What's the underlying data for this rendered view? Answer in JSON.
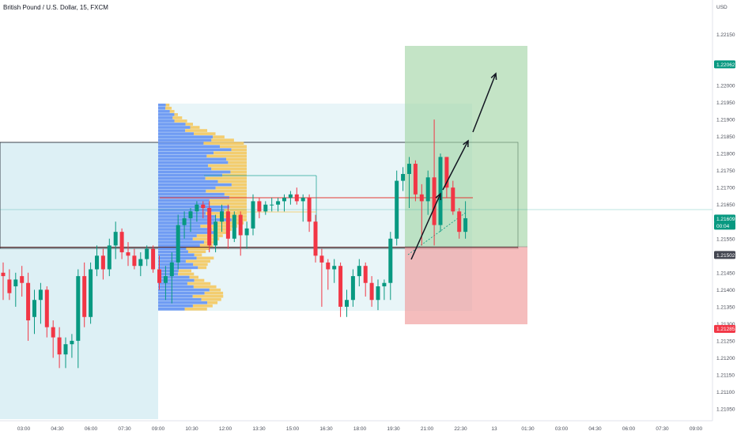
{
  "header": {
    "title": "British Pound / U.S. Dollar, 15, FXCM"
  },
  "colors": {
    "up": "#089981",
    "down": "#f23645",
    "vp_up": "#f5c557",
    "vp_down": "#5b8cf2",
    "target_zone": "#a5d6a7",
    "stop_zone": "#ef9a9a",
    "range_box": "#b3dde8"
  },
  "chart_data": {
    "type": "candlestick",
    "symbol": "GBPUSD",
    "timeframe": "15",
    "currency_label": "USD",
    "y_ticks": [
      "1.22150",
      "1.22000",
      "1.21950",
      "1.21900",
      "1.21850",
      "1.21800",
      "1.21750",
      "1.21700",
      "1.21650",
      "1.21550",
      "1.21450",
      "1.21400",
      "1.21350",
      "1.21300",
      "1.21250",
      "1.21200",
      "1.21150",
      "1.21100",
      "1.21050"
    ],
    "x_ticks": [
      "03:00",
      "04:30",
      "06:00",
      "07:30",
      "09:00",
      "10:30",
      "12:00",
      "13:30",
      "15:00",
      "16:30",
      "18:00",
      "19:30",
      "21:00",
      "22:30",
      "13",
      "01:30",
      "03:00",
      "04:30",
      "06:00",
      "07:30",
      "09:00"
    ],
    "ylim": [
      1.2102,
      1.2217
    ],
    "price_tags": [
      {
        "label": "1.22062",
        "value": 1.22062,
        "color": "#089981"
      },
      {
        "label": "1.21609",
        "value": 1.21609,
        "color": "#089981"
      },
      {
        "label": "00:04",
        "value": 1.21588,
        "color": "#089981"
      },
      {
        "label": "1.21502",
        "value": 1.21502,
        "color": "#434651"
      },
      {
        "label": "1.21285",
        "value": 1.21285,
        "color": "#f23645"
      }
    ],
    "candles": [
      {
        "o": 1.2145,
        "h": 1.2148,
        "l": 1.2137,
        "c": 1.2144
      },
      {
        "o": 1.2143,
        "h": 1.2146,
        "l": 1.2137,
        "c": 1.2139
      },
      {
        "o": 1.2141,
        "h": 1.2145,
        "l": 1.2135,
        "c": 1.2143
      },
      {
        "o": 1.2144,
        "h": 1.2147,
        "l": 1.2138,
        "c": 1.2142
      },
      {
        "o": 1.2142,
        "h": 1.2145,
        "l": 1.2125,
        "c": 1.2131
      },
      {
        "o": 1.2132,
        "h": 1.214,
        "l": 1.2127,
        "c": 1.2137
      },
      {
        "o": 1.2137,
        "h": 1.2142,
        "l": 1.213,
        "c": 1.214
      },
      {
        "o": 1.214,
        "h": 1.2141,
        "l": 1.2126,
        "c": 1.2129
      },
      {
        "o": 1.2129,
        "h": 1.2131,
        "l": 1.212,
        "c": 1.2126
      },
      {
        "o": 1.2126,
        "h": 1.2129,
        "l": 1.2117,
        "c": 1.2121
      },
      {
        "o": 1.2121,
        "h": 1.2126,
        "l": 1.2117,
        "c": 1.2124
      },
      {
        "o": 1.2124,
        "h": 1.2127,
        "l": 1.212,
        "c": 1.2125
      },
      {
        "o": 1.2125,
        "h": 1.2146,
        "l": 1.2117,
        "c": 1.2144
      },
      {
        "o": 1.2144,
        "h": 1.2148,
        "l": 1.2129,
        "c": 1.2132
      },
      {
        "o": 1.2132,
        "h": 1.2148,
        "l": 1.213,
        "c": 1.2146
      },
      {
        "o": 1.2146,
        "h": 1.2153,
        "l": 1.2144,
        "c": 1.215
      },
      {
        "o": 1.215,
        "h": 1.2152,
        "l": 1.2143,
        "c": 1.2146
      },
      {
        "o": 1.2146,
        "h": 1.2155,
        "l": 1.2144,
        "c": 1.2153
      },
      {
        "o": 1.2153,
        "h": 1.216,
        "l": 1.2149,
        "c": 1.2157
      },
      {
        "o": 1.2157,
        "h": 1.2158,
        "l": 1.2149,
        "c": 1.2151
      },
      {
        "o": 1.2151,
        "h": 1.2154,
        "l": 1.2147,
        "c": 1.215
      },
      {
        "o": 1.215,
        "h": 1.2152,
        "l": 1.2146,
        "c": 1.2147
      },
      {
        "o": 1.2147,
        "h": 1.2151,
        "l": 1.2144,
        "c": 1.2149
      },
      {
        "o": 1.2149,
        "h": 1.2153,
        "l": 1.2147,
        "c": 1.2152
      },
      {
        "o": 1.2152,
        "h": 1.2153,
        "l": 1.2145,
        "c": 1.2146
      },
      {
        "o": 1.2146,
        "h": 1.215,
        "l": 1.214,
        "c": 1.2142
      },
      {
        "o": 1.2142,
        "h": 1.2147,
        "l": 1.2137,
        "c": 1.2144
      },
      {
        "o": 1.2144,
        "h": 1.2151,
        "l": 1.2136,
        "c": 1.2148
      },
      {
        "o": 1.2148,
        "h": 1.2162,
        "l": 1.2146,
        "c": 1.2159
      },
      {
        "o": 1.2159,
        "h": 1.2163,
        "l": 1.2155,
        "c": 1.2161
      },
      {
        "o": 1.2161,
        "h": 1.2164,
        "l": 1.2157,
        "c": 1.2163
      },
      {
        "o": 1.2163,
        "h": 1.2166,
        "l": 1.216,
        "c": 1.2165
      },
      {
        "o": 1.2165,
        "h": 1.2166,
        "l": 1.2161,
        "c": 1.2164
      },
      {
        "o": 1.2164,
        "h": 1.2166,
        "l": 1.2151,
        "c": 1.2153
      },
      {
        "o": 1.2153,
        "h": 1.2162,
        "l": 1.2151,
        "c": 1.216
      },
      {
        "o": 1.216,
        "h": 1.2165,
        "l": 1.2157,
        "c": 1.2163
      },
      {
        "o": 1.2163,
        "h": 1.2165,
        "l": 1.2152,
        "c": 1.2155
      },
      {
        "o": 1.2155,
        "h": 1.2163,
        "l": 1.2154,
        "c": 1.2162
      },
      {
        "o": 1.2162,
        "h": 1.2163,
        "l": 1.215,
        "c": 1.2156
      },
      {
        "o": 1.2156,
        "h": 1.216,
        "l": 1.2152,
        "c": 1.2158
      },
      {
        "o": 1.2158,
        "h": 1.2168,
        "l": 1.2156,
        "c": 1.2166
      },
      {
        "o": 1.2166,
        "h": 1.2167,
        "l": 1.2161,
        "c": 1.2163
      },
      {
        "o": 1.2163,
        "h": 1.2166,
        "l": 1.2162,
        "c": 1.2165
      },
      {
        "o": 1.2165,
        "h": 1.2167,
        "l": 1.2163,
        "c": 1.2165
      },
      {
        "o": 1.2165,
        "h": 1.2167,
        "l": 1.2163,
        "c": 1.2166
      },
      {
        "o": 1.2166,
        "h": 1.2168,
        "l": 1.2163,
        "c": 1.2167
      },
      {
        "o": 1.2167,
        "h": 1.2169,
        "l": 1.2165,
        "c": 1.2168
      },
      {
        "o": 1.2168,
        "h": 1.217,
        "l": 1.2165,
        "c": 1.2166
      },
      {
        "o": 1.2166,
        "h": 1.2168,
        "l": 1.216,
        "c": 1.2167
      },
      {
        "o": 1.2167,
        "h": 1.2168,
        "l": 1.2157,
        "c": 1.216
      },
      {
        "o": 1.216,
        "h": 1.2162,
        "l": 1.2148,
        "c": 1.215
      },
      {
        "o": 1.215,
        "h": 1.2152,
        "l": 1.2135,
        "c": 1.2148
      },
      {
        "o": 1.2148,
        "h": 1.2149,
        "l": 1.214,
        "c": 1.2146
      },
      {
        "o": 1.2146,
        "h": 1.2149,
        "l": 1.2142,
        "c": 1.2147
      },
      {
        "o": 1.2147,
        "h": 1.2148,
        "l": 1.2132,
        "c": 1.2135
      },
      {
        "o": 1.2135,
        "h": 1.214,
        "l": 1.2132,
        "c": 1.2137
      },
      {
        "o": 1.2137,
        "h": 1.2146,
        "l": 1.2135,
        "c": 1.2144
      },
      {
        "o": 1.2144,
        "h": 1.2149,
        "l": 1.2141,
        "c": 1.2147
      },
      {
        "o": 1.2147,
        "h": 1.2148,
        "l": 1.2138,
        "c": 1.2142
      },
      {
        "o": 1.2142,
        "h": 1.2144,
        "l": 1.2135,
        "c": 1.2137
      },
      {
        "o": 1.2137,
        "h": 1.2143,
        "l": 1.2134,
        "c": 1.2141
      },
      {
        "o": 1.2141,
        "h": 1.2143,
        "l": 1.2137,
        "c": 1.2142
      },
      {
        "o": 1.2142,
        "h": 1.2157,
        "l": 1.2137,
        "c": 1.2155
      },
      {
        "o": 1.2155,
        "h": 1.2175,
        "l": 1.2153,
        "c": 1.2172
      },
      {
        "o": 1.2172,
        "h": 1.2176,
        "l": 1.2169,
        "c": 1.2174
      },
      {
        "o": 1.2174,
        "h": 1.2179,
        "l": 1.2164,
        "c": 1.2177
      },
      {
        "o": 1.2177,
        "h": 1.2178,
        "l": 1.2166,
        "c": 1.2168
      },
      {
        "o": 1.2168,
        "h": 1.2171,
        "l": 1.2153,
        "c": 1.2166
      },
      {
        "o": 1.2166,
        "h": 1.2175,
        "l": 1.2162,
        "c": 1.2173
      },
      {
        "o": 1.2173,
        "h": 1.219,
        "l": 1.2153,
        "c": 1.2159
      },
      {
        "o": 1.2159,
        "h": 1.218,
        "l": 1.2157,
        "c": 1.2179
      },
      {
        "o": 1.2179,
        "h": 1.2179,
        "l": 1.2167,
        "c": 1.217
      },
      {
        "o": 1.217,
        "h": 1.2172,
        "l": 1.2162,
        "c": 1.2163
      },
      {
        "o": 1.2163,
        "h": 1.2164,
        "l": 1.2155,
        "c": 1.2157
      },
      {
        "o": 1.2157,
        "h": 1.2166,
        "l": 1.2155,
        "c": 1.2161
      }
    ],
    "grid": false,
    "overlays": [
      "volume profile",
      "long position",
      "trend arrows"
    ]
  }
}
